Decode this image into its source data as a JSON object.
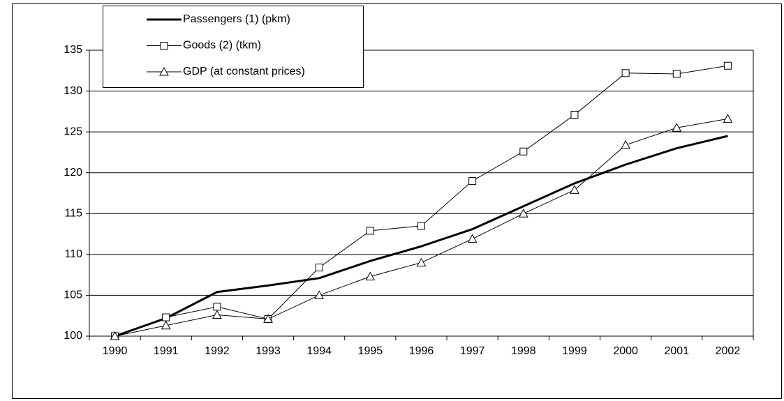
{
  "chart_data": {
    "type": "line",
    "categories": [
      "1990",
      "1991",
      "1992",
      "1993",
      "1994",
      "1995",
      "1996",
      "1997",
      "1998",
      "1999",
      "2000",
      "2001",
      "2002"
    ],
    "series": [
      {
        "name": "Passengers (1) (pkm)",
        "color": "#000000",
        "marker": "none",
        "width": 3,
        "values": [
          100,
          102.2,
          105.4,
          106.2,
          107.1,
          109.2,
          111,
          113.1,
          115.9,
          118.7,
          121,
          123,
          124.5
        ]
      },
      {
        "name": "Goods (2) (tkm)",
        "color": "#000000",
        "marker": "square",
        "width": 1,
        "values": [
          100,
          102.3,
          103.6,
          102.1,
          108.4,
          112.9,
          113.5,
          119,
          122.6,
          127.1,
          132.2,
          132.1,
          133.1
        ]
      },
      {
        "name": "GDP (at constant prices)",
        "color": "#000000",
        "marker": "triangle",
        "width": 1,
        "values": [
          100,
          101.3,
          102.6,
          102.1,
          105,
          107.3,
          109,
          111.9,
          115,
          117.9,
          123.4,
          125.5,
          126.6
        ]
      }
    ],
    "ylim": [
      100,
      135
    ],
    "yticks": [
      100,
      105,
      110,
      115,
      120,
      125,
      130,
      135
    ],
    "grid": true,
    "legend": "top-left"
  }
}
